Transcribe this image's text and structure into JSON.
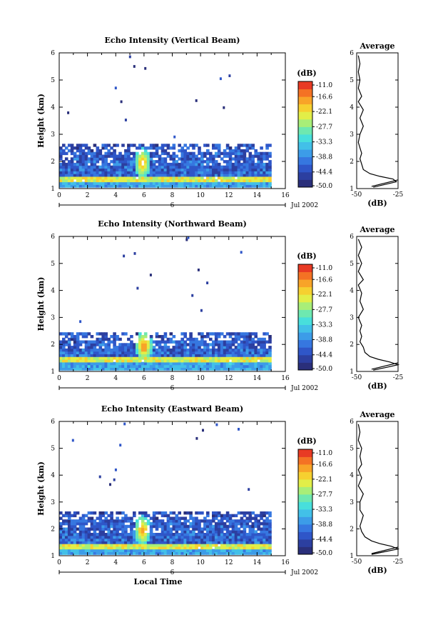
{
  "chart_data": [
    {
      "type": "heatmap",
      "title": "Echo Intensity (Vertical Beam)",
      "xlabel": "",
      "ylabel": "Height (km)",
      "xlim": [
        0,
        16
      ],
      "ylim": [
        1,
        6
      ],
      "x_ticks": [
        "0",
        "2",
        "4",
        "6",
        "8",
        "10",
        "12",
        "14",
        "16"
      ],
      "y_ticks": [
        "1",
        "2",
        "3",
        "4",
        "5",
        "6"
      ],
      "date_axis_label": "6",
      "date_text": "Jul 2002",
      "colorbar_unit": "(dB)",
      "colorbar_ticks": [
        "-11.0",
        "-16.6",
        "-22.1",
        "-27.7",
        "-33.3",
        "-38.8",
        "-44.4",
        "-50.0"
      ],
      "colorbar_range": [
        -50.0,
        -11.0
      ],
      "data_end_hour": 14.8,
      "layer_top_km": 2.5,
      "noise_floor_km": [
        1.25,
        1.45
      ],
      "hotspots": [
        {
          "hour": 5.8,
          "height_km": 1.9,
          "value_db": -14
        }
      ],
      "profile": {
        "title": "Average",
        "xlabel": "(dB)",
        "x_ticks": [
          "-50",
          "-25"
        ],
        "xlim": [
          -50,
          -25
        ],
        "ylim": [
          1,
          6
        ],
        "y_ticks": [
          "1",
          "2",
          "3",
          "4",
          "5",
          "6"
        ],
        "heights_km": [
          1.05,
          1.15,
          1.25,
          1.35,
          1.45,
          1.55,
          1.7,
          1.9,
          2.1,
          2.3,
          2.5,
          2.7,
          3.0,
          3.3,
          3.6,
          3.9,
          4.2,
          4.4,
          4.7,
          5.0,
          5.3,
          5.6,
          5.9
        ],
        "values_db": [
          -40,
          -33,
          -26,
          -28,
          -36,
          -42,
          -46,
          -47,
          -48,
          -47,
          -48,
          -49,
          -48,
          -46,
          -48,
          -46,
          -49,
          -47,
          -49,
          -48,
          -49,
          -48,
          -49
        ]
      }
    },
    {
      "type": "heatmap",
      "title": "Echo Intensity (Northward Beam)",
      "xlabel": "",
      "ylabel": "Height (km)",
      "xlim": [
        0,
        16
      ],
      "ylim": [
        1,
        6
      ],
      "x_ticks": [
        "0",
        "2",
        "4",
        "6",
        "8",
        "10",
        "12",
        "14",
        "16"
      ],
      "y_ticks": [
        "1",
        "2",
        "3",
        "4",
        "5",
        "6"
      ],
      "date_axis_label": "6",
      "date_text": "Jul 2002",
      "colorbar_unit": "(dB)",
      "colorbar_ticks": [
        "-11.0",
        "-16.6",
        "-22.1",
        "-27.7",
        "-33.3",
        "-38.8",
        "-44.4",
        "-50.0"
      ],
      "colorbar_range": [
        -50.0,
        -11.0
      ],
      "data_end_hour": 14.8,
      "layer_top_km": 2.3,
      "noise_floor_km": [
        1.35,
        1.55
      ],
      "hotspots": [
        {
          "hour": 5.9,
          "height_km": 1.9,
          "value_db": -13
        }
      ],
      "profile": {
        "title": "Average",
        "xlabel": "(dB)",
        "x_ticks": [
          "-50",
          "-25"
        ],
        "xlim": [
          -50,
          -25
        ],
        "ylim": [
          1,
          6
        ],
        "y_ticks": [
          "1",
          "2",
          "3",
          "4",
          "5",
          "6"
        ],
        "heights_km": [
          1.05,
          1.15,
          1.25,
          1.35,
          1.45,
          1.55,
          1.7,
          1.9,
          2.1,
          2.3,
          2.5,
          2.7,
          3.0,
          3.3,
          3.6,
          3.9,
          4.2,
          4.4,
          4.7,
          5.0,
          5.3,
          5.6,
          5.9
        ],
        "values_db": [
          -40,
          -32,
          -25,
          -30,
          -37,
          -42,
          -45,
          -46,
          -48,
          -47,
          -48,
          -47,
          -49,
          -46,
          -48,
          -47,
          -49,
          -46,
          -49,
          -47,
          -49,
          -47,
          -49
        ]
      }
    },
    {
      "type": "heatmap",
      "title": "Echo Intensity (Eastward Beam)",
      "xlabel": "Local Time",
      "ylabel": "Height (km)",
      "xlim": [
        0,
        16
      ],
      "ylim": [
        1,
        6
      ],
      "x_ticks": [
        "0",
        "2",
        "4",
        "6",
        "8",
        "10",
        "12",
        "14",
        "16"
      ],
      "y_ticks": [
        "1",
        "2",
        "3",
        "4",
        "5",
        "6"
      ],
      "date_axis_label": "6",
      "date_text": "Jul 2002",
      "colorbar_unit": "(dB)",
      "colorbar_ticks": [
        "-11.0",
        "-16.6",
        "-22.1",
        "-27.7",
        "-33.3",
        "-38.8",
        "-44.4",
        "-50.0"
      ],
      "colorbar_range": [
        -50.0,
        -11.0
      ],
      "data_end_hour": 14.8,
      "layer_top_km": 2.5,
      "noise_floor_km": [
        1.25,
        1.45
      ],
      "hotspots": [
        {
          "hour": 5.8,
          "height_km": 1.9,
          "value_db": -14
        }
      ],
      "profile": {
        "title": "Average",
        "xlabel": "(dB)",
        "x_ticks": [
          "-50",
          "-25"
        ],
        "xlim": [
          -50,
          -25
        ],
        "ylim": [
          1,
          6
        ],
        "y_ticks": [
          "1",
          "2",
          "3",
          "4",
          "5",
          "6"
        ],
        "heights_km": [
          1.05,
          1.15,
          1.25,
          1.35,
          1.45,
          1.55,
          1.7,
          1.9,
          2.1,
          2.3,
          2.5,
          2.7,
          3.0,
          3.3,
          3.6,
          3.9,
          4.2,
          4.4,
          4.7,
          5.0,
          5.3,
          5.6,
          5.9
        ],
        "values_db": [
          -41,
          -33,
          -25,
          -29,
          -36,
          -41,
          -45,
          -47,
          -48,
          -47,
          -46,
          -48,
          -48,
          -46,
          -49,
          -47,
          -49,
          -47,
          -48,
          -47,
          -49,
          -48,
          -49
        ]
      }
    }
  ],
  "colorscale": [
    "#2a2f7a",
    "#2c3fa0",
    "#2f56c8",
    "#3677e0",
    "#3c9ce8",
    "#42c0e8",
    "#48dfdc",
    "#6ee8b0",
    "#a8ee78",
    "#e2ee48",
    "#f6d030",
    "#f8a428",
    "#f47224",
    "#e83a24"
  ]
}
